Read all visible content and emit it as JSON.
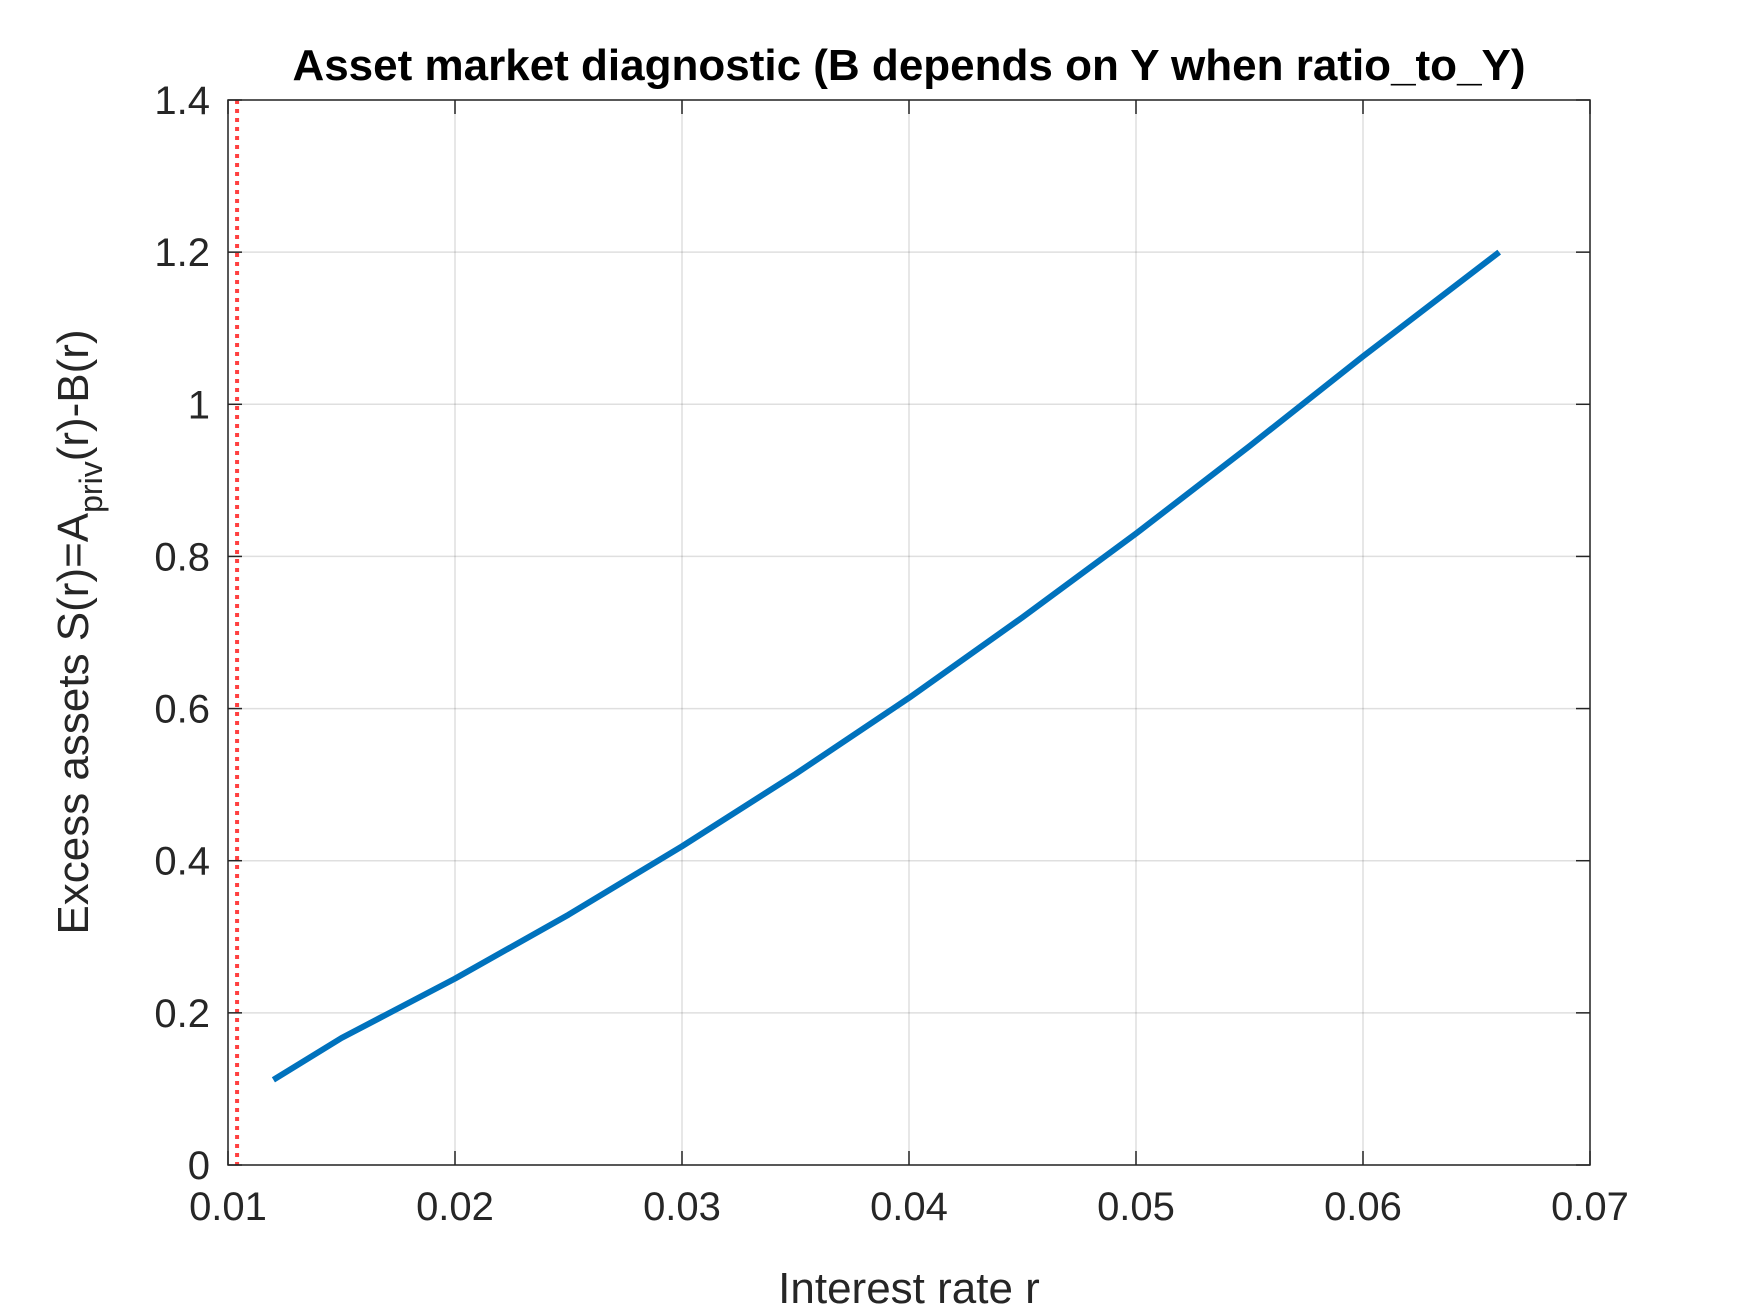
{
  "chart_data": {
    "type": "line",
    "title": "Asset market diagnostic (B depends on Y when ratio_to_Y)",
    "xlabel": "Interest rate r",
    "ylabel": {
      "prefix": "Excess assets S(r)=A",
      "subscript": "priv",
      "suffix": "(r)-B(r)"
    },
    "xlim": [
      0.01,
      0.07
    ],
    "ylim": [
      0,
      1.4
    ],
    "xticks": [
      0.01,
      0.02,
      0.03,
      0.04,
      0.05,
      0.06,
      0.07
    ],
    "xtick_labels": [
      "0.01",
      "0.02",
      "0.03",
      "0.04",
      "0.05",
      "0.06",
      "0.07"
    ],
    "yticks": [
      0,
      0.2,
      0.4,
      0.6,
      0.8,
      1.0,
      1.2,
      1.4
    ],
    "ytick_labels": [
      "0",
      "0.2",
      "0.4",
      "0.6",
      "0.8",
      "1",
      "1.2",
      "1.4"
    ],
    "grid": true,
    "series": [
      {
        "color": "#0072BD",
        "x": [
          0.012,
          0.015,
          0.02,
          0.025,
          0.03,
          0.035,
          0.04,
          0.045,
          0.05,
          0.055,
          0.06,
          0.066
        ],
        "y": [
          0.112,
          0.167,
          0.245,
          0.329,
          0.419,
          0.514,
          0.614,
          0.72,
          0.83,
          0.945,
          1.063,
          1.2
        ]
      }
    ],
    "reference_lines": [
      {
        "orientation": "vertical",
        "x": 0.0104,
        "style": "dotted",
        "color": "#FF4040"
      }
    ]
  }
}
